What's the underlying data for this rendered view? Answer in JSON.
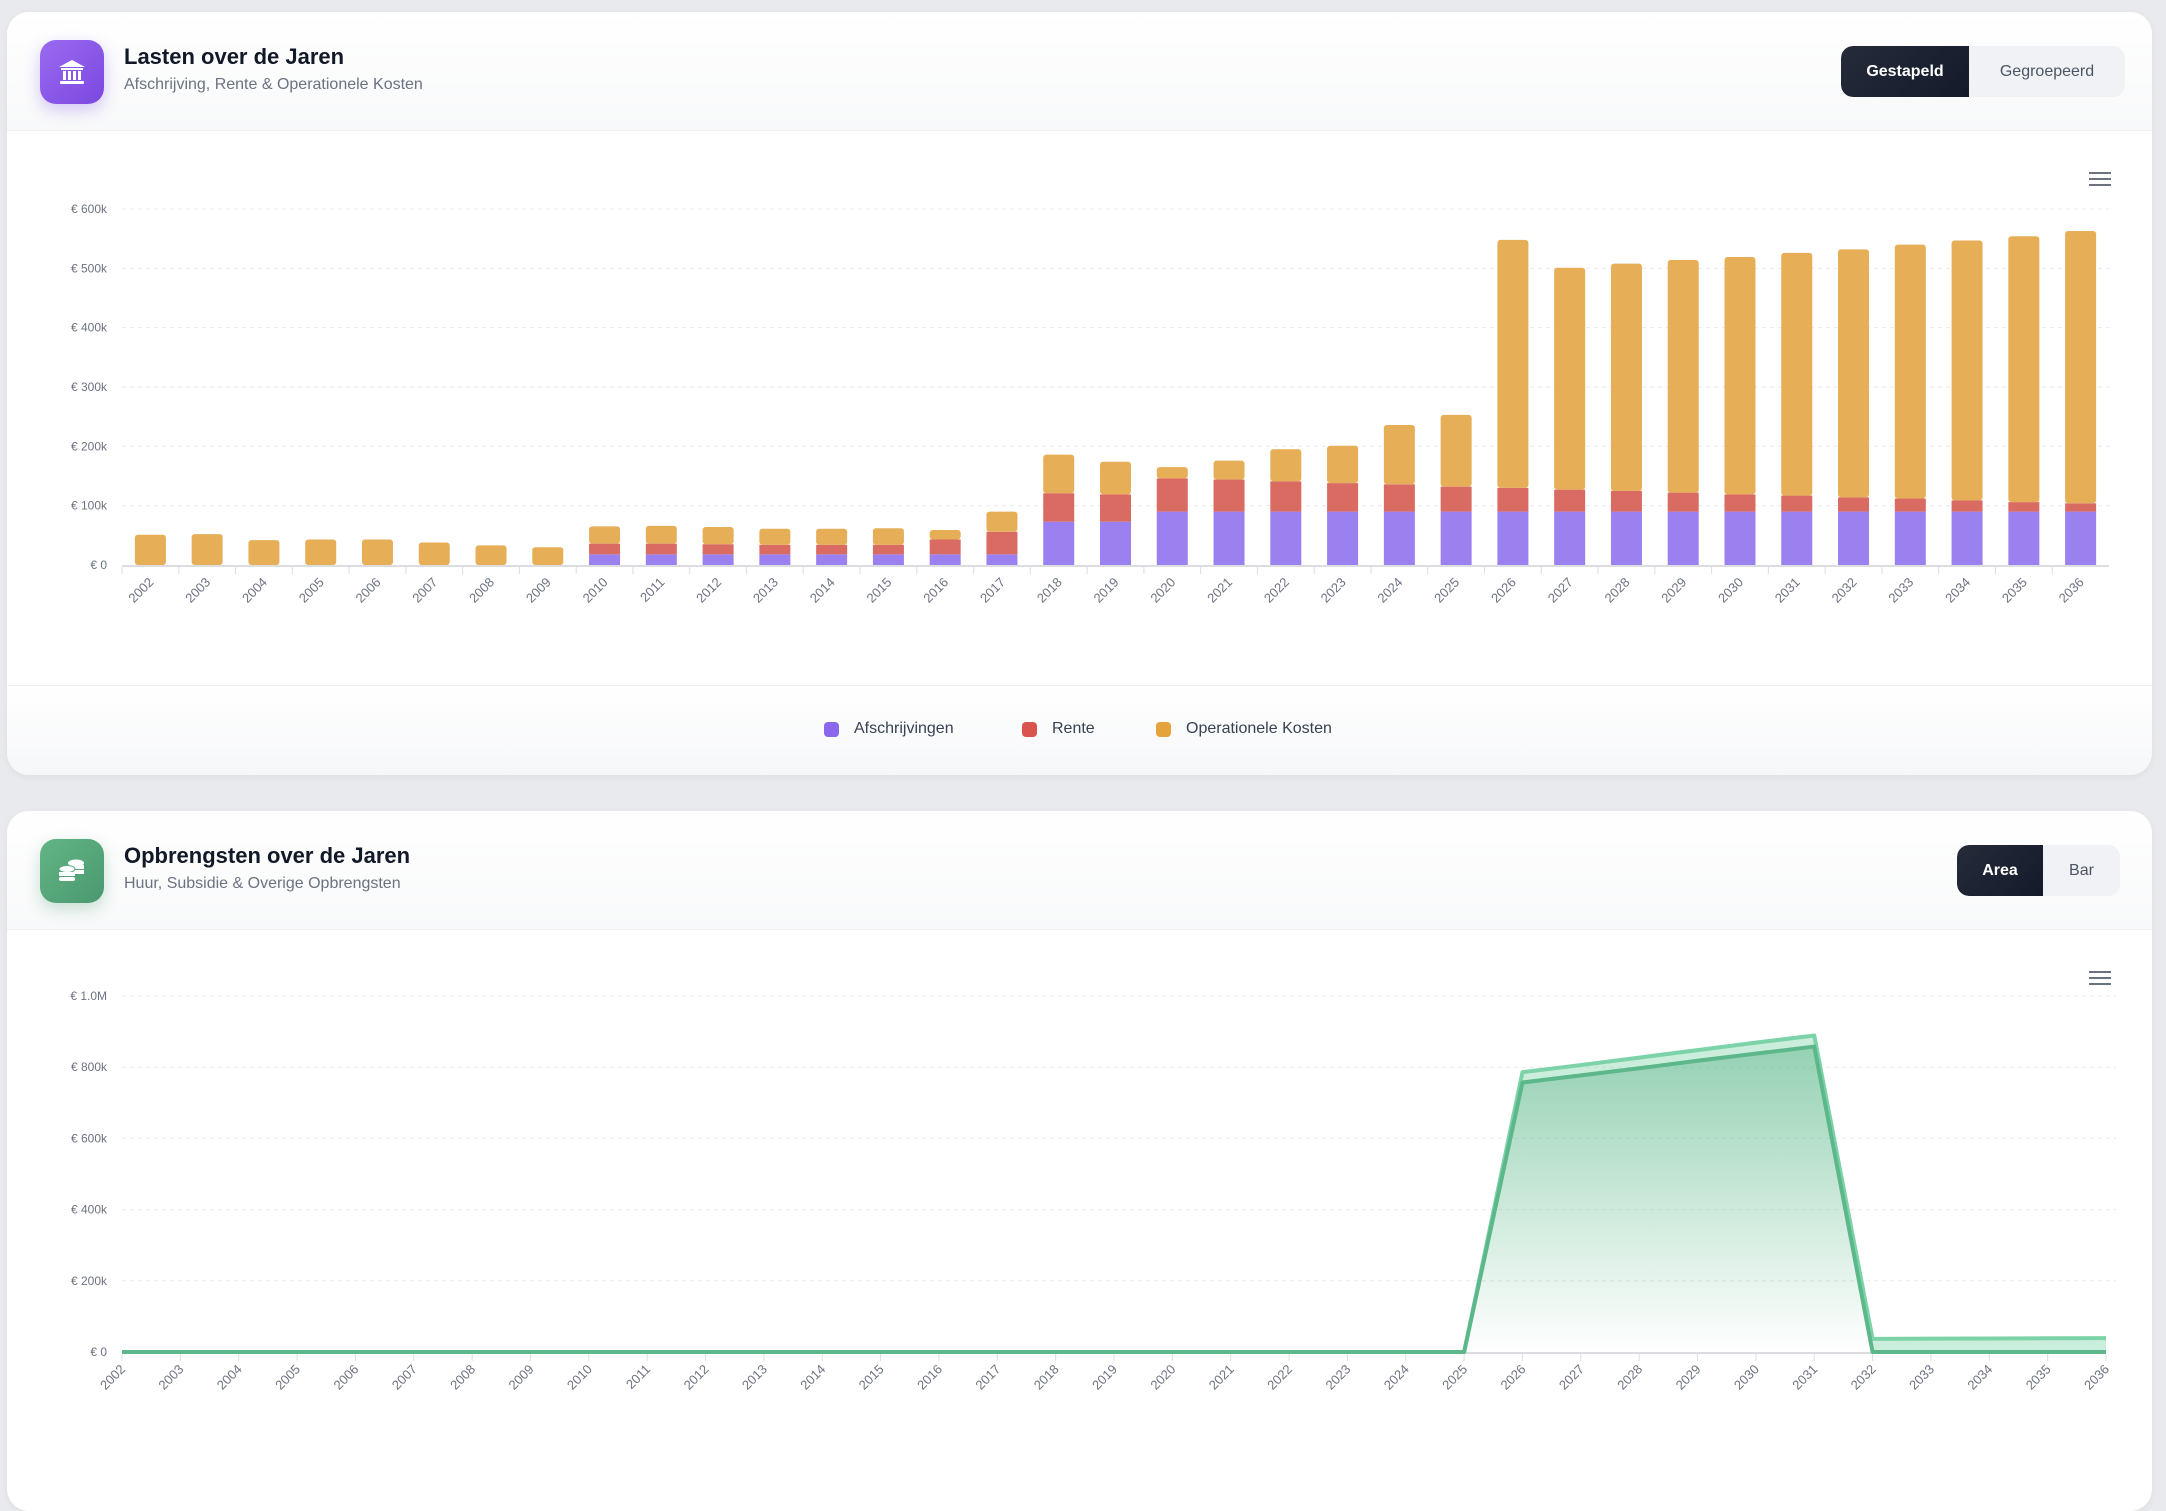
{
  "lasten": {
    "title": "Lasten over de Jaren",
    "subtitle": "Afschrijving, Rente & Operationele Kosten",
    "icon": "bank-icon",
    "toggle": [
      "Gestapeld",
      "Gegroepeerd"
    ],
    "toggle_active": "Gestapeld",
    "legend": [
      {
        "label": "Afschrijvingen",
        "color": "#8b67ec"
      },
      {
        "label": "Rente",
        "color": "#d9534f"
      },
      {
        "label": "Operationele Kosten",
        "color": "#e5a33b"
      }
    ]
  },
  "opbrengsten": {
    "title": "Opbrengsten over de Jaren",
    "subtitle": "Huur, Subsidie & Overige Opbrengsten",
    "icon": "coins-icon",
    "toggle": [
      "Area",
      "Bar"
    ],
    "toggle_active": "Area"
  },
  "chart_data": [
    {
      "type": "bar",
      "stacked": true,
      "grid": true,
      "legend_position": "bottom",
      "categories": [
        "2002",
        "2003",
        "2004",
        "2005",
        "2006",
        "2007",
        "2008",
        "2009",
        "2010",
        "2011",
        "2012",
        "2013",
        "2014",
        "2015",
        "2016",
        "2017",
        "2018",
        "2019",
        "2020",
        "2021",
        "2022",
        "2023",
        "2024",
        "2025",
        "2026",
        "2027",
        "2028",
        "2029",
        "2030",
        "2031",
        "2032",
        "2033",
        "2034",
        "2035",
        "2036"
      ],
      "ylim": [
        0,
        600000
      ],
      "yticks": [
        "€ 0",
        "€ 100k",
        "€ 200k",
        "€ 300k",
        "€ 400k",
        "€ 500k",
        "€ 600k"
      ],
      "series": [
        {
          "name": "Afschrijvingen",
          "color": "#9b80ef",
          "values": [
            0,
            0,
            0,
            0,
            0,
            0,
            0,
            0,
            18000,
            18000,
            18000,
            18000,
            18000,
            18000,
            18000,
            18000,
            73000,
            73000,
            90000,
            90000,
            90000,
            90000,
            90000,
            90000,
            90000,
            90000,
            90000,
            90000,
            90000,
            90000,
            90000,
            90000,
            90000,
            90000,
            90000
          ]
        },
        {
          "name": "Rente",
          "color": "#d96b63",
          "values": [
            0,
            0,
            0,
            0,
            0,
            0,
            0,
            0,
            18000,
            18000,
            17000,
            16000,
            16000,
            16000,
            25000,
            38000,
            48000,
            46000,
            56000,
            54000,
            51000,
            48000,
            46000,
            42000,
            40000,
            37000,
            35000,
            32000,
            29000,
            27000,
            24000,
            22000,
            19000,
            16000,
            14000
          ]
        },
        {
          "name": "Operationele Kosten",
          "color": "#e5ae57",
          "values": [
            51000,
            52000,
            42000,
            43000,
            43000,
            38000,
            33000,
            30000,
            29000,
            30000,
            29000,
            27000,
            27000,
            28000,
            16000,
            34000,
            65000,
            55000,
            19000,
            32000,
            54000,
            63000,
            100000,
            121000,
            418000,
            374000,
            383000,
            392000,
            400000,
            409000,
            418000,
            428000,
            438000,
            448000,
            459000
          ]
        }
      ]
    },
    {
      "type": "area",
      "stacked": true,
      "grid": true,
      "categories": [
        "2002",
        "2003",
        "2004",
        "2005",
        "2006",
        "2007",
        "2008",
        "2009",
        "2010",
        "2011",
        "2012",
        "2013",
        "2014",
        "2015",
        "2016",
        "2017",
        "2018",
        "2019",
        "2020",
        "2021",
        "2022",
        "2023",
        "2024",
        "2025",
        "2026",
        "2027",
        "2028",
        "2029",
        "2030",
        "2031",
        "2032",
        "2033",
        "2034",
        "2035",
        "2036"
      ],
      "ylim": [
        0,
        1000000
      ],
      "yticks": [
        "€ 0",
        "€ 200k",
        "€ 400k",
        "€ 600k",
        "€ 800k",
        "€ 1.0M"
      ],
      "series": [
        {
          "color": "#5cb88a",
          "values": [
            0,
            0,
            0,
            0,
            0,
            0,
            0,
            0,
            0,
            0,
            0,
            0,
            0,
            0,
            0,
            0,
            0,
            0,
            0,
            0,
            0,
            0,
            0,
            0,
            757000,
            777000,
            797000,
            818000,
            838000,
            858000,
            0,
            0,
            0,
            0,
            0
          ]
        },
        {
          "color": "#7dd3a8",
          "values": [
            0,
            0,
            0,
            0,
            0,
            0,
            0,
            0,
            0,
            0,
            0,
            0,
            0,
            0,
            0,
            0,
            0,
            0,
            0,
            0,
            0,
            0,
            0,
            0,
            29000,
            29000,
            30000,
            30000,
            31000,
            31000,
            37000,
            37500,
            38000,
            38500,
            39000
          ]
        }
      ]
    }
  ]
}
